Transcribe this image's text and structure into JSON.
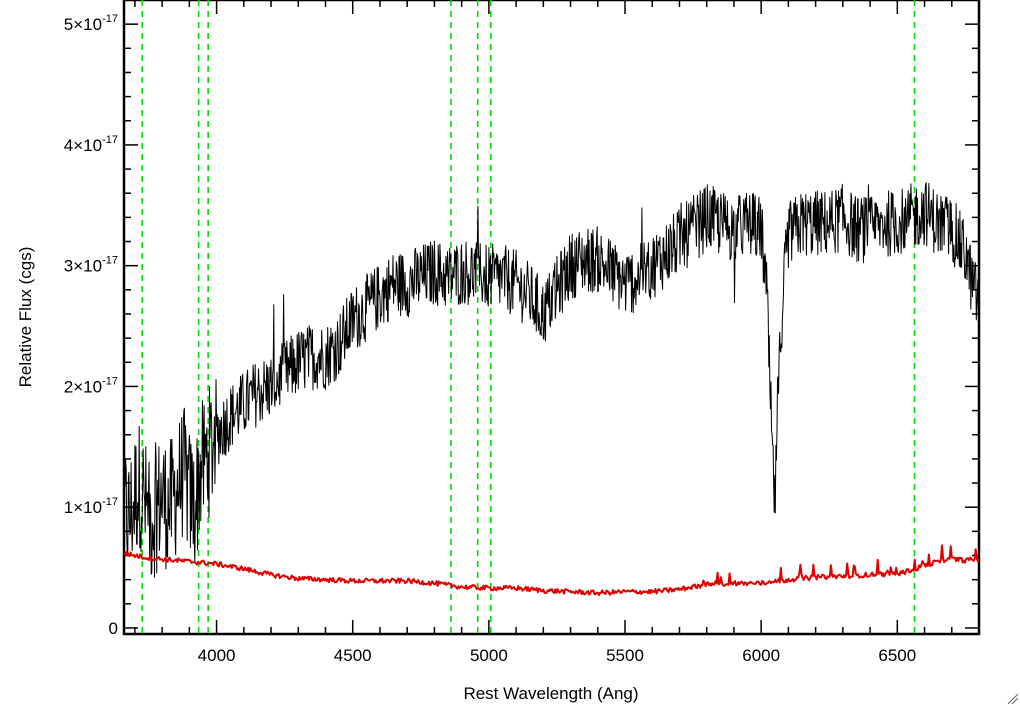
{
  "chart_data": {
    "type": "line",
    "xlabel": "Rest Wavelength (Ang)",
    "ylabel": "Relative Flux (cgs)",
    "xlim": [
      3660,
      6800
    ],
    "ylim": [
      -5e-19,
      5.2e-17
    ],
    "x_ticks": [
      {
        "value": 4000,
        "label": "4000"
      },
      {
        "value": 4500,
        "label": "4500"
      },
      {
        "value": 5000,
        "label": "5000"
      },
      {
        "value": 5500,
        "label": "5500"
      },
      {
        "value": 6000,
        "label": "6000"
      },
      {
        "value": 6500,
        "label": "6500"
      }
    ],
    "y_ticks": [
      {
        "value": 0,
        "mantissa": "0",
        "exponent": ""
      },
      {
        "value": 1e-17,
        "mantissa": "1×10",
        "exponent": "-17"
      },
      {
        "value": 2e-17,
        "mantissa": "2×10",
        "exponent": "-17"
      },
      {
        "value": 3e-17,
        "mantissa": "3×10",
        "exponent": "-17"
      },
      {
        "value": 4e-17,
        "mantissa": "4×10",
        "exponent": "-17"
      },
      {
        "value": 5e-17,
        "mantissa": "5×10",
        "exponent": "-17"
      }
    ],
    "series": [
      {
        "color": "#000000",
        "style": "solid",
        "points": [
          [
            3660,
            1.0
          ],
          [
            3680,
            0.9
          ],
          [
            3700,
            1.1
          ],
          [
            3720,
            1.2
          ],
          [
            3740,
            1.0
          ],
          [
            3760,
            0.9
          ],
          [
            3780,
            1.0
          ],
          [
            3800,
            1.1
          ],
          [
            3820,
            1.0
          ],
          [
            3840,
            1.05
          ],
          [
            3860,
            1.2
          ],
          [
            3880,
            1.3
          ],
          [
            3900,
            1.1
          ],
          [
            3920,
            1.0
          ],
          [
            3940,
            1.3
          ],
          [
            3960,
            1.4
          ],
          [
            3980,
            1.5
          ],
          [
            4000,
            1.6
          ],
          [
            4050,
            1.75
          ],
          [
            4100,
            1.85
          ],
          [
            4150,
            1.95
          ],
          [
            4200,
            2.0
          ],
          [
            4250,
            2.1
          ],
          [
            4300,
            2.2
          ],
          [
            4350,
            2.25
          ],
          [
            4400,
            2.25
          ],
          [
            4450,
            2.35
          ],
          [
            4500,
            2.55
          ],
          [
            4550,
            2.65
          ],
          [
            4600,
            2.75
          ],
          [
            4650,
            2.85
          ],
          [
            4700,
            2.85
          ],
          [
            4750,
            2.9
          ],
          [
            4800,
            2.95
          ],
          [
            4850,
            2.9
          ],
          [
            4900,
            2.95
          ],
          [
            4950,
            2.95
          ],
          [
            5000,
            2.9
          ],
          [
            5050,
            2.9
          ],
          [
            5100,
            2.85
          ],
          [
            5150,
            2.75
          ],
          [
            5200,
            2.6
          ],
          [
            5250,
            2.8
          ],
          [
            5300,
            3.0
          ],
          [
            5350,
            3.05
          ],
          [
            5400,
            3.05
          ],
          [
            5450,
            2.95
          ],
          [
            5500,
            2.85
          ],
          [
            5550,
            2.9
          ],
          [
            5600,
            3.0
          ],
          [
            5650,
            3.1
          ],
          [
            5700,
            3.2
          ],
          [
            5750,
            3.3
          ],
          [
            5800,
            3.4
          ],
          [
            5850,
            3.35
          ],
          [
            5900,
            3.3
          ],
          [
            5950,
            3.35
          ],
          [
            6000,
            3.3
          ],
          [
            6020,
            2.8
          ],
          [
            6040,
            1.5
          ],
          [
            6050,
            1.0
          ],
          [
            6060,
            1.8
          ],
          [
            6080,
            2.8
          ],
          [
            6100,
            3.25
          ],
          [
            6150,
            3.35
          ],
          [
            6200,
            3.35
          ],
          [
            6250,
            3.35
          ],
          [
            6300,
            3.4
          ],
          [
            6350,
            3.3
          ],
          [
            6400,
            3.3
          ],
          [
            6450,
            3.35
          ],
          [
            6500,
            3.35
          ],
          [
            6550,
            3.4
          ],
          [
            6600,
            3.45
          ],
          [
            6650,
            3.35
          ],
          [
            6700,
            3.3
          ],
          [
            6750,
            3.1
          ],
          [
            6780,
            2.8
          ],
          [
            6800,
            2.7
          ]
        ]
      },
      {
        "color": "#e00000",
        "style": "solid",
        "points": [
          [
            3660,
            0.62
          ],
          [
            3700,
            0.6
          ],
          [
            3750,
            0.58
          ],
          [
            3800,
            0.57
          ],
          [
            3850,
            0.56
          ],
          [
            3900,
            0.55
          ],
          [
            3950,
            0.54
          ],
          [
            4000,
            0.53
          ],
          [
            4100,
            0.49
          ],
          [
            4200,
            0.44
          ],
          [
            4300,
            0.41
          ],
          [
            4400,
            0.4
          ],
          [
            4450,
            0.395
          ],
          [
            4500,
            0.39
          ],
          [
            4600,
            0.39
          ],
          [
            4700,
            0.39
          ],
          [
            4800,
            0.37
          ],
          [
            4900,
            0.34
          ],
          [
            5000,
            0.33
          ],
          [
            5100,
            0.33
          ],
          [
            5200,
            0.31
          ],
          [
            5300,
            0.3
          ],
          [
            5400,
            0.29
          ],
          [
            5500,
            0.3
          ],
          [
            5600,
            0.3
          ],
          [
            5700,
            0.32
          ],
          [
            5750,
            0.34
          ],
          [
            5800,
            0.36
          ],
          [
            5900,
            0.37
          ],
          [
            6000,
            0.37
          ],
          [
            6050,
            0.38
          ],
          [
            6100,
            0.4
          ],
          [
            6200,
            0.42
          ],
          [
            6300,
            0.43
          ],
          [
            6400,
            0.44
          ],
          [
            6500,
            0.45
          ],
          [
            6560,
            0.48
          ],
          [
            6600,
            0.52
          ],
          [
            6650,
            0.55
          ],
          [
            6700,
            0.57
          ],
          [
            6750,
            0.56
          ],
          [
            6800,
            0.57
          ]
        ]
      }
    ],
    "vertical_lines": [
      {
        "x": 3727,
        "color": "#00dd00",
        "style": "dashed"
      },
      {
        "x": 3934,
        "color": "#00dd00",
        "style": "dashed"
      },
      {
        "x": 3969,
        "color": "#00dd00",
        "style": "dashed"
      },
      {
        "x": 4861,
        "color": "#00dd00",
        "style": "dashed"
      },
      {
        "x": 4959,
        "color": "#00dd00",
        "style": "dashed"
      },
      {
        "x": 5007,
        "color": "#00dd00",
        "style": "dashed"
      },
      {
        "x": 6563,
        "color": "#00dd00",
        "style": "dashed"
      }
    ],
    "grid": false,
    "legend": "none"
  }
}
